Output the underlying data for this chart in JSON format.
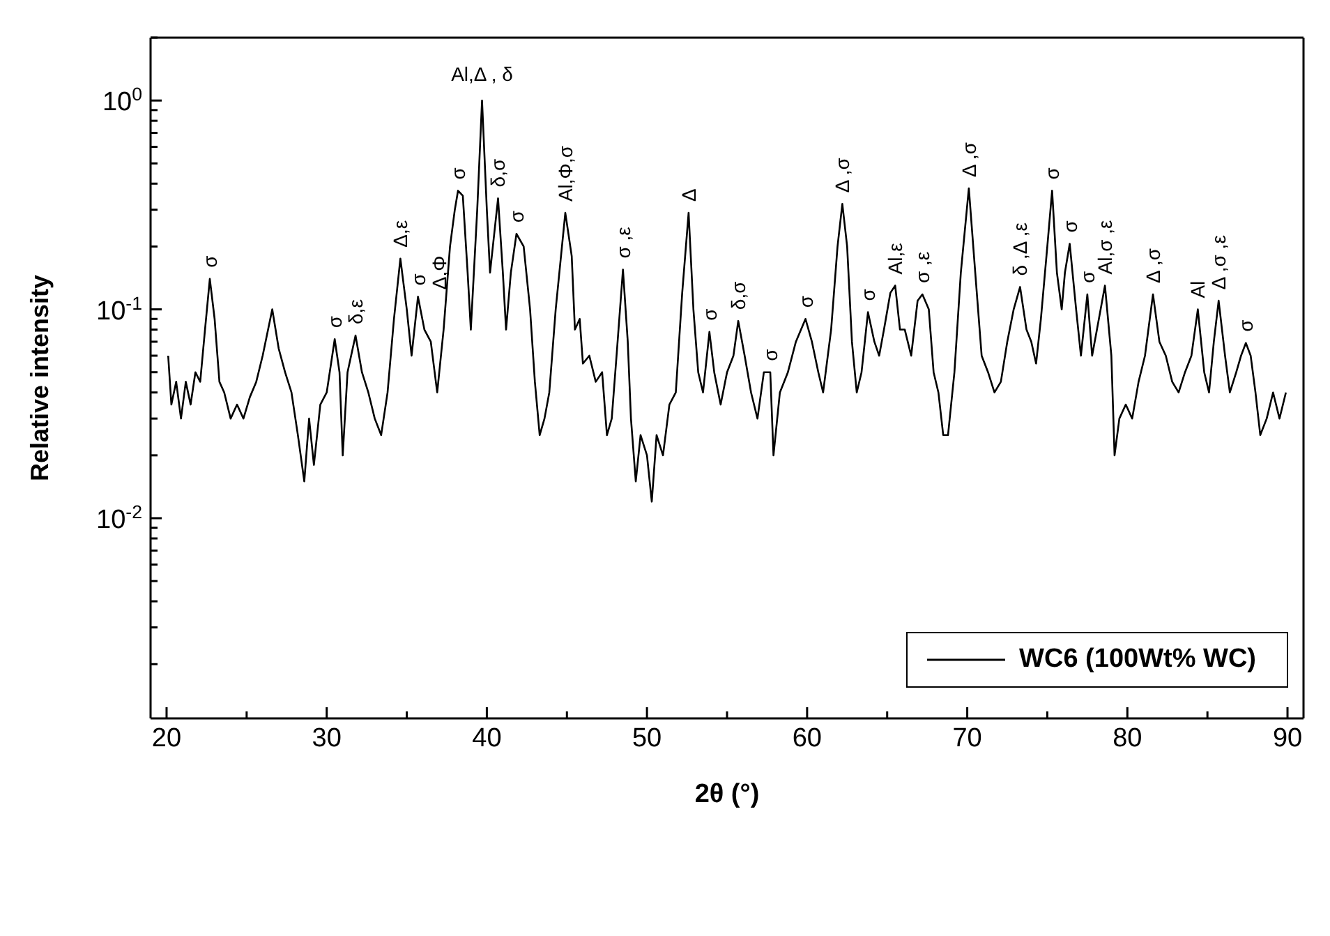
{
  "chart_data": {
    "type": "line",
    "xlabel": "2θ (°)",
    "ylabel": "Relative intensity",
    "log": "y",
    "legend": "bottom right",
    "marker": "none",
    "line_style": "solid",
    "xlim": [
      19,
      91
    ],
    "xticks": [
      20,
      {
        "value": 25,
        "label": null
      },
      30,
      {
        "value": 35,
        "label": null
      },
      40,
      {
        "value": 45,
        "label": null
      },
      50,
      {
        "value": 55,
        "label": null
      },
      60,
      {
        "value": 65,
        "label": null
      },
      70,
      {
        "value": 75,
        "label": null
      },
      80,
      {
        "value": 85,
        "label": null
      },
      90
    ],
    "ylim": [
      0.0011,
      2
    ],
    "yticks": [
      {
        "value": 0.002,
        "label": null
      },
      {
        "value": 0.003,
        "label": null
      },
      {
        "value": 0.004,
        "label": null
      },
      {
        "value": 0.005,
        "label": null
      },
      {
        "value": 0.006,
        "label": null
      },
      {
        "value": 0.007,
        "label": null
      },
      {
        "value": 0.008,
        "label": null
      },
      {
        "value": 0.009,
        "label": null
      },
      {
        "value": 0.01,
        "label": "10$^{-2}$"
      },
      {
        "value": 0.02,
        "label": null
      },
      {
        "value": 0.03,
        "label": null
      },
      {
        "value": 0.04,
        "label": null
      },
      {
        "value": 0.05,
        "label": null
      },
      {
        "value": 0.06,
        "label": null
      },
      {
        "value": 0.07,
        "label": null
      },
      {
        "value": 0.08,
        "label": null
      },
      {
        "value": 0.09,
        "label": null
      },
      {
        "value": 0.1,
        "label": "10$^{-1}$"
      },
      {
        "value": 0.2,
        "label": null
      },
      {
        "value": 0.3,
        "label": null
      },
      {
        "value": 0.4,
        "label": null
      },
      {
        "value": 0.5,
        "label": null
      },
      {
        "value": 0.6,
        "label": null
      },
      {
        "value": 0.7,
        "label": null
      },
      {
        "value": 0.8,
        "label": null
      },
      {
        "value": 0.9,
        "label": null
      },
      {
        "value": 1,
        "label": "10$^{0}$"
      },
      {
        "value": 2,
        "label": null
      }
    ],
    "series": [
      {
        "name": "WC6 (100Wt% WC)",
        "color": "#000000",
        "x": [
          20.1,
          20.3,
          20.6,
          20.9,
          21.2,
          21.5,
          21.8,
          22.1,
          22.4,
          22.7,
          23.0,
          23.3,
          23.6,
          24.0,
          24.4,
          24.8,
          25.2,
          25.6,
          26.0,
          26.6,
          27.0,
          27.4,
          27.8,
          28.2,
          28.6,
          28.9,
          29.2,
          29.6,
          30.0,
          30.5,
          30.8,
          31.0,
          31.3,
          31.8,
          32.2,
          32.6,
          33.0,
          33.4,
          33.8,
          34.2,
          34.6,
          35.0,
          35.3,
          35.7,
          36.1,
          36.5,
          36.9,
          37.3,
          37.7,
          38.0,
          38.2,
          38.5,
          38.8,
          39.0,
          39.4,
          39.7,
          40.0,
          40.2,
          40.7,
          41.0,
          41.2,
          41.5,
          41.85,
          42.3,
          42.7,
          43.0,
          43.3,
          43.6,
          43.9,
          44.3,
          44.9,
          45.3,
          45.5,
          45.8,
          46.0,
          46.4,
          46.8,
          47.2,
          47.5,
          47.8,
          48.1,
          48.5,
          48.8,
          49.0,
          49.3,
          49.6,
          50.0,
          50.3,
          50.6,
          51.0,
          51.4,
          51.8,
          52.2,
          52.6,
          52.9,
          53.2,
          53.5,
          53.9,
          54.2,
          54.6,
          55.0,
          55.4,
          55.7,
          56.1,
          56.5,
          56.9,
          57.3,
          57.7,
          57.9,
          58.3,
          58.8,
          59.3,
          59.9,
          60.3,
          60.7,
          61.0,
          61.5,
          61.9,
          62.2,
          62.5,
          62.8,
          63.1,
          63.4,
          63.8,
          64.2,
          64.5,
          64.8,
          65.2,
          65.5,
          65.8,
          66.1,
          66.5,
          66.9,
          67.2,
          67.6,
          67.9,
          68.2,
          68.5,
          68.8,
          69.2,
          69.6,
          70.1,
          70.5,
          70.9,
          71.3,
          71.7,
          72.1,
          72.5,
          72.9,
          73.3,
          73.7,
          74.0,
          74.3,
          74.6,
          75.0,
          75.3,
          75.6,
          75.9,
          76.1,
          76.4,
          76.8,
          77.1,
          77.5,
          77.8,
          78.1,
          78.6,
          79.0,
          79.2,
          79.5,
          79.9,
          80.3,
          80.7,
          81.1,
          81.6,
          82.0,
          82.4,
          82.8,
          83.2,
          83.6,
          84.0,
          84.4,
          84.8,
          85.1,
          85.4,
          85.7,
          86.1,
          86.4,
          86.8,
          87.1,
          87.4,
          87.7,
          88.0,
          88.3,
          88.7,
          89.1,
          89.5,
          89.9
        ],
        "values": [
          0.06,
          0.035,
          0.045,
          0.03,
          0.045,
          0.035,
          0.05,
          0.045,
          0.08,
          0.14,
          0.09,
          0.045,
          0.04,
          0.03,
          0.035,
          0.03,
          0.038,
          0.045,
          0.06,
          0.1,
          0.065,
          0.05,
          0.04,
          0.025,
          0.015,
          0.03,
          0.018,
          0.035,
          0.04,
          0.072,
          0.05,
          0.02,
          0.05,
          0.075,
          0.05,
          0.04,
          0.03,
          0.025,
          0.04,
          0.09,
          0.175,
          0.1,
          0.06,
          0.115,
          0.08,
          0.07,
          0.04,
          0.08,
          0.2,
          0.3,
          0.37,
          0.35,
          0.15,
          0.08,
          0.3,
          1.0,
          0.3,
          0.15,
          0.34,
          0.15,
          0.08,
          0.15,
          0.23,
          0.2,
          0.1,
          0.045,
          0.025,
          0.03,
          0.04,
          0.1,
          0.29,
          0.18,
          0.08,
          0.09,
          0.055,
          0.06,
          0.045,
          0.05,
          0.025,
          0.03,
          0.06,
          0.155,
          0.07,
          0.03,
          0.015,
          0.025,
          0.02,
          0.012,
          0.025,
          0.02,
          0.035,
          0.04,
          0.12,
          0.29,
          0.1,
          0.05,
          0.04,
          0.078,
          0.05,
          0.035,
          0.05,
          0.06,
          0.088,
          0.06,
          0.04,
          0.03,
          0.05,
          0.05,
          0.02,
          0.04,
          0.05,
          0.07,
          0.09,
          0.07,
          0.05,
          0.04,
          0.08,
          0.2,
          0.32,
          0.2,
          0.07,
          0.04,
          0.05,
          0.097,
          0.07,
          0.06,
          0.08,
          0.12,
          0.13,
          0.08,
          0.08,
          0.06,
          0.11,
          0.118,
          0.1,
          0.05,
          0.04,
          0.025,
          0.025,
          0.05,
          0.15,
          0.38,
          0.15,
          0.06,
          0.05,
          0.04,
          0.045,
          0.07,
          0.1,
          0.128,
          0.08,
          0.07,
          0.055,
          0.09,
          0.2,
          0.37,
          0.15,
          0.1,
          0.15,
          0.206,
          0.1,
          0.06,
          0.118,
          0.06,
          0.08,
          0.13,
          0.06,
          0.02,
          0.03,
          0.035,
          0.03,
          0.045,
          0.06,
          0.118,
          0.07,
          0.06,
          0.045,
          0.04,
          0.05,
          0.06,
          0.1,
          0.05,
          0.04,
          0.07,
          0.11,
          0.06,
          0.04,
          0.05,
          0.06,
          0.069,
          0.06,
          0.04,
          0.025,
          0.03,
          0.04,
          0.03,
          0.04
        ]
      }
    ],
    "annotations": [
      {
        "text": "σ",
        "x": 22.7,
        "y": 0.14
      },
      {
        "text": "σ",
        "x": 30.5,
        "y": 0.072
      },
      {
        "text": "δ,ε",
        "x": 31.8,
        "y": 0.075
      },
      {
        "text": "Δ,ε",
        "x": 34.6,
        "y": 0.175
      },
      {
        "text": "σ",
        "x": 35.7,
        "y": 0.115
      },
      {
        "text": "Δ,Φ",
        "x": 37.0,
        "y": 0.11
      },
      {
        "text": "σ",
        "x": 38.2,
        "y": 0.37
      },
      {
        "text": "Al,Δ , δ",
        "x": 39.7,
        "y": 1.0
      },
      {
        "text": "δ,σ",
        "x": 40.7,
        "y": 0.34
      },
      {
        "text": "σ",
        "x": 41.85,
        "y": 0.23
      },
      {
        "text": "Al,Φ,σ",
        "x": 44.9,
        "y": 0.29
      },
      {
        "text": "σ ,ε",
        "x": 48.5,
        "y": 0.155
      },
      {
        "text": "Δ",
        "x": 52.6,
        "y": 0.29
      },
      {
        "text": "σ",
        "x": 53.9,
        "y": 0.078
      },
      {
        "text": "δ,σ",
        "x": 55.7,
        "y": 0.088
      },
      {
        "text": "σ",
        "x": 57.7,
        "y": 0.05
      },
      {
        "text": "σ",
        "x": 59.9,
        "y": 0.09
      },
      {
        "text": "Δ ,σ",
        "x": 62.2,
        "y": 0.32
      },
      {
        "text": "σ",
        "x": 63.8,
        "y": 0.097
      },
      {
        "text": "Al,ε",
        "x": 65.5,
        "y": 0.13
      },
      {
        "text": "σ ,ε",
        "x": 67.2,
        "y": 0.118
      },
      {
        "text": "Δ ,σ",
        "x": 70.1,
        "y": 0.38
      },
      {
        "text": "δ ,Δ ,ε",
        "x": 73.3,
        "y": 0.128
      },
      {
        "text": "σ",
        "x": 75.3,
        "y": 0.37
      },
      {
        "text": "σ",
        "x": 76.4,
        "y": 0.206
      },
      {
        "text": "σ",
        "x": 77.5,
        "y": 0.118
      },
      {
        "text": "Al,σ ,ε",
        "x": 78.6,
        "y": 0.13
      },
      {
        "text": "Δ ,σ",
        "x": 81.6,
        "y": 0.118
      },
      {
        "text": "Al",
        "x": 84.4,
        "y": 0.1
      },
      {
        "text": "Δ ,σ ,ε",
        "x": 85.7,
        "y": 0.11
      },
      {
        "text": "σ",
        "x": 87.4,
        "y": 0.069
      }
    ]
  }
}
